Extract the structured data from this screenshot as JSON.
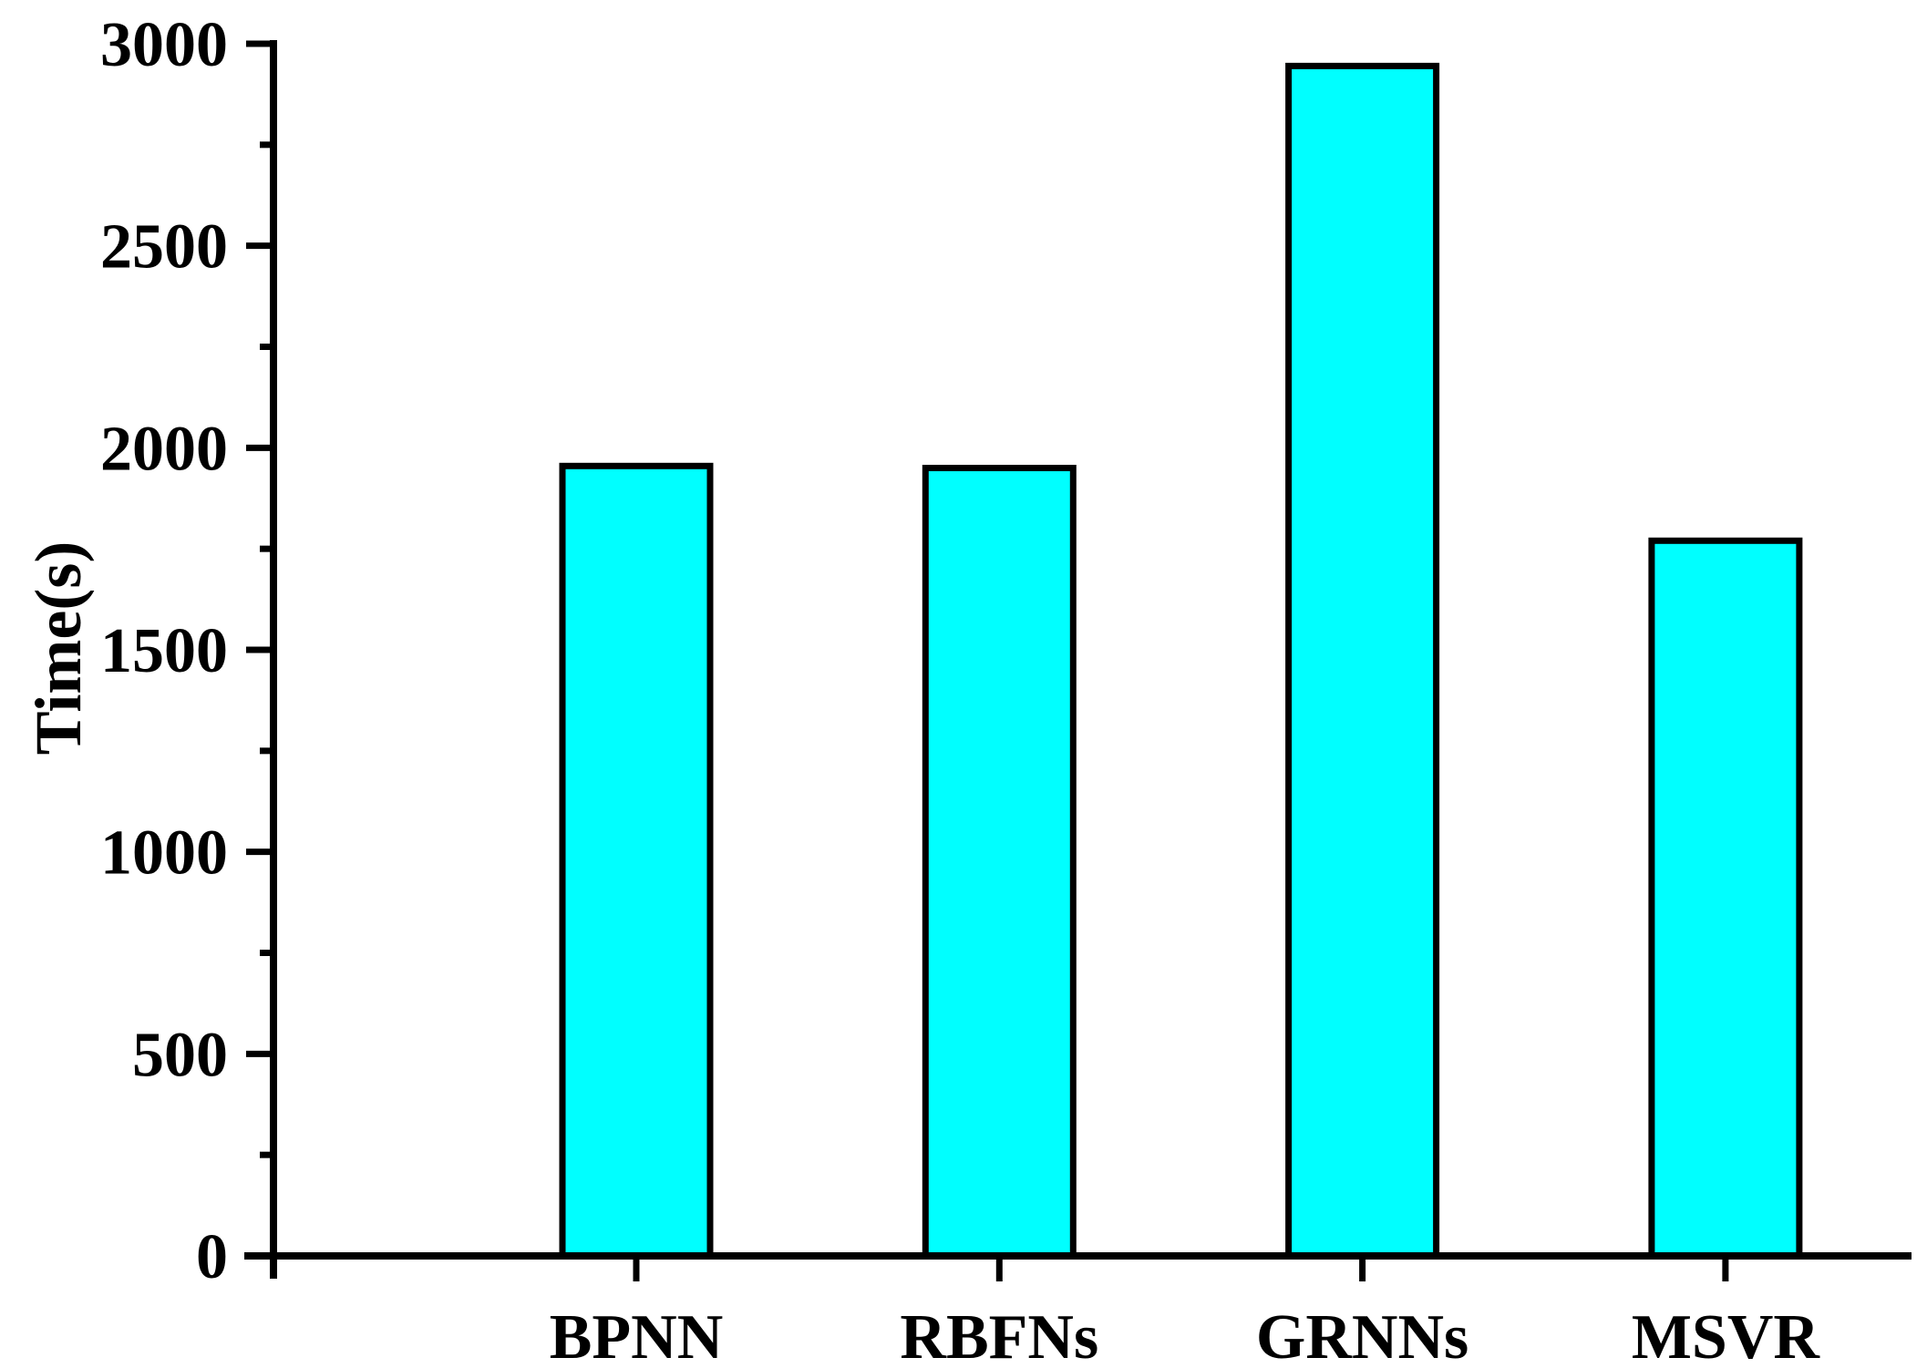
{
  "figure": {
    "background_color": "#FFFFFF",
    "axis_color": "#000000",
    "text_color": "#000000"
  },
  "chart_data": {
    "type": "bar",
    "title": "",
    "xlabel": "",
    "ylabel": "Time(s)",
    "categories": [
      "BPNN",
      "RBFNs",
      "GRNNs",
      "MSVR"
    ],
    "values": [
      1955,
      1950,
      2945,
      1770
    ],
    "ylim": [
      0,
      3000
    ],
    "y_major_ticks": [
      0,
      500,
      1000,
      1500,
      2000,
      2500,
      3000
    ],
    "y_major_tick_labels": [
      "0",
      "500",
      "1000",
      "1500",
      "2000",
      "2500",
      "3000"
    ],
    "y_minor_tick_step": 250,
    "bar_fill_color": "#00FFFF",
    "bar_border_color": "#000000",
    "grid": "off",
    "legend": "none",
    "tick_direction": "out",
    "spines": [
      "left",
      "bottom"
    ]
  }
}
